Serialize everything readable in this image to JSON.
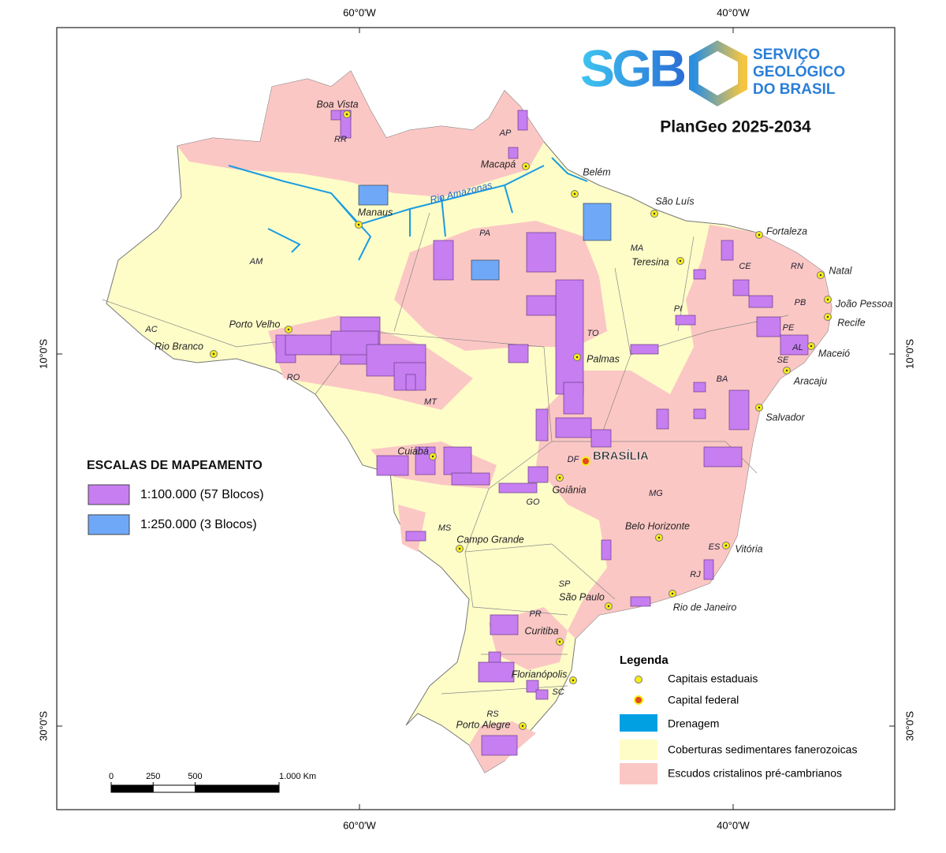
{
  "header": {
    "title": "PlanGeo 2025-2034",
    "logo": {
      "acronym": "SGB",
      "lines": [
        "SERVIÇO",
        "GEOLÓGICO",
        "DO BRASIL"
      ]
    }
  },
  "frame": {
    "longitude_ticks": [
      {
        "value": -60,
        "label": "60°0'W"
      },
      {
        "value": -40,
        "label": "40°0'W"
      }
    ],
    "latitude_ticks": [
      {
        "value": -10,
        "label": "10°0'S"
      },
      {
        "value": -30,
        "label": "30°0'S"
      }
    ]
  },
  "map": {
    "river": "Rio Amazonas",
    "capitals": [
      "Boa Vista",
      "Macapá",
      "Belém",
      "São Luís",
      "Fortaleza",
      "Natal",
      "João Pessoa",
      "Recife",
      "Maceió",
      "Aracaju",
      "Salvador",
      "Teresina",
      "Palmas",
      "Manaus",
      "Porto Velho",
      "Rio Branco",
      "Cuiabá",
      "Goiânia",
      "Campo Grande",
      "Belo Horizonte",
      "Vitória",
      "Rio de Janeiro",
      "São Paulo",
      "Curitiba",
      "Florianópolis",
      "Porto Alegre"
    ],
    "federal_capital": "BRASÍLIA",
    "states": [
      "RR",
      "AP",
      "PA",
      "AM",
      "AC",
      "RO",
      "MT",
      "TO",
      "MA",
      "CE",
      "RN",
      "PB",
      "PE",
      "AL",
      "SE",
      "PI",
      "BA",
      "DF",
      "GO",
      "MS",
      "MG",
      "ES",
      "RJ",
      "SP",
      "PR",
      "SC",
      "RS"
    ]
  },
  "scales_legend": {
    "title": "ESCALAS DE MAPEAMENTO",
    "items": [
      "1:100.000 (57 Blocos)",
      "1:250.000 (3 Blocos)"
    ]
  },
  "legend": {
    "title": "Legenda",
    "items": [
      "Capitais estaduais",
      "Capital federal",
      "Drenagem",
      "Coberturas sedimentares fanerozoicas",
      "Escudos cristalinos pré-cambrianos"
    ]
  },
  "scale_bar": {
    "ticks": [
      0,
      250,
      500,
      {
        "value": 1000,
        "label": "1.000 Km"
      }
    ]
  }
}
